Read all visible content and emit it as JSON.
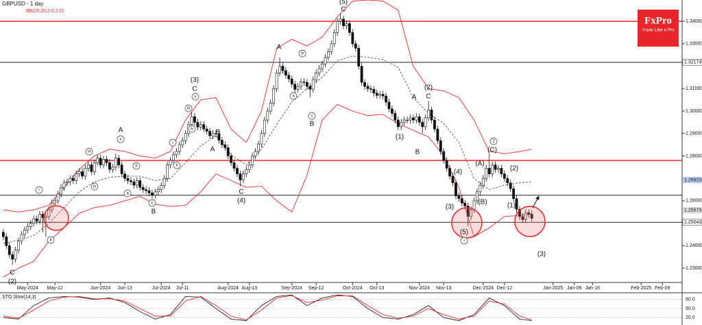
{
  "brand": {
    "name": "FxPro",
    "tagline": "Trade Like a Pro"
  },
  "chart_data": [
    {
      "type": "candlestick",
      "title": "GBPUSD - 1 day",
      "subtitle": "BB(20,20,2.0,2.0)",
      "xlim": [
        -1.1,
        223.5
      ],
      "ylim": [
        1.2236,
        1.3495
      ],
      "yticks": [
        {
          "value": 1.23,
          "label": "1.23000"
        },
        {
          "value": 1.24,
          "label": "1.24000"
        },
        {
          "value": 1.26,
          "label": "1.26000"
        },
        {
          "value": 1.28,
          "label": "1.28000"
        },
        {
          "value": 1.29,
          "label": "1.29000"
        },
        {
          "value": 1.3,
          "label": "1.30000"
        },
        {
          "value": 1.31,
          "label": "1.31000"
        },
        {
          "value": 1.33,
          "label": "1.33000"
        },
        {
          "value": 1.34,
          "label": "1.34000"
        }
      ],
      "xticks": [
        {
          "value": 8,
          "label": "May-2024"
        },
        {
          "value": 17,
          "label": "May-12"
        },
        {
          "value": 32,
          "label": "Jun-2024"
        },
        {
          "value": 40,
          "label": "Jun-13"
        },
        {
          "value": 52,
          "label": "Jul-2024"
        },
        {
          "value": 59,
          "label": "Jul-11"
        },
        {
          "value": 74,
          "label": "Aug-2024"
        },
        {
          "value": 81,
          "label": "Aug-13"
        },
        {
          "value": 95,
          "label": "Sep-2024"
        },
        {
          "value": 103,
          "label": "Sep-12"
        },
        {
          "value": 115,
          "label": "Oct-2024"
        },
        {
          "value": 123,
          "label": "Oct-13"
        },
        {
          "value": 137,
          "label": "Nov-2024"
        },
        {
          "value": 145,
          "label": "Nov-13"
        },
        {
          "value": 158,
          "label": "Dec-2024"
        },
        {
          "value": 165,
          "label": "Dec-12"
        },
        {
          "value": 181,
          "label": "Jan-2025"
        },
        {
          "value": 188,
          "label": "Jan-09"
        },
        {
          "value": 194,
          "label": "Jan-16"
        },
        {
          "value": 210,
          "label": "Feb-2025"
        },
        {
          "value": 217,
          "label": "Feb-09"
        }
      ],
      "up_color": "#ffffff",
      "down_color": "#111111",
      "open": [
        1.246,
        1.244,
        1.24,
        1.236,
        1.234,
        1.238,
        1.242,
        1.245,
        1.247,
        1.2485,
        1.25,
        1.252,
        1.251,
        1.254,
        1.2525,
        1.253,
        1.256,
        1.259,
        1.26,
        1.263,
        1.266,
        1.268,
        1.2685,
        1.27,
        1.269,
        1.272,
        1.273,
        1.271,
        1.2745,
        1.276,
        1.273,
        1.277,
        1.279,
        1.276,
        1.2785,
        1.277,
        1.274,
        1.275,
        1.279,
        1.276,
        1.272,
        1.27,
        1.269,
        1.2685,
        1.267,
        1.269,
        1.266,
        1.265,
        1.2645,
        1.2635,
        1.2625,
        1.264,
        1.265,
        1.2668,
        1.27,
        1.276,
        1.278,
        1.2805,
        1.282,
        1.285,
        1.2868,
        1.29,
        1.294,
        1.2975,
        1.295,
        1.2929,
        1.294,
        1.292,
        1.291,
        1.289,
        1.29,
        1.2898,
        1.287,
        1.285,
        1.2837,
        1.28,
        1.277,
        1.2745,
        1.272,
        1.2693,
        1.272,
        1.274,
        1.276,
        1.28,
        1.282,
        1.2853,
        1.29,
        1.296,
        1.3,
        1.3036,
        1.31,
        1.317,
        1.32,
        1.318,
        1.316,
        1.3143,
        1.312,
        1.3097,
        1.311,
        1.313,
        1.3128,
        1.311,
        1.3097,
        1.314,
        1.317,
        1.3189,
        1.321,
        1.324,
        1.3265,
        1.33,
        1.335,
        1.34,
        1.341,
        1.338,
        1.339,
        1.335,
        1.33,
        1.328,
        1.32,
        1.3128,
        1.311,
        1.31,
        1.3097,
        1.308,
        1.307,
        1.3075,
        1.3067,
        1.304,
        1.301,
        1.299,
        1.296,
        1.293,
        1.295,
        1.296,
        1.296,
        1.297,
        1.296,
        1.2975,
        1.295,
        1.293,
        1.297,
        1.3005,
        1.296,
        1.292,
        1.2868,
        1.282,
        1.278,
        1.2745,
        1.271,
        1.268,
        1.2622,
        1.261,
        1.259,
        1.2577,
        1.253,
        1.256,
        1.26,
        1.264,
        1.2669,
        1.27,
        1.2745,
        1.272,
        1.276,
        1.274,
        1.2745,
        1.272,
        1.27,
        1.268,
        1.2654,
        1.261,
        1.2562,
        1.253,
        1.2516,
        1.2547,
        1.254
      ],
      "high": [
        1.2475,
        1.2455,
        1.2415,
        1.2375,
        1.2395,
        1.2435,
        1.2465,
        1.2485,
        1.25,
        1.2515,
        1.2535,
        1.2535,
        1.2555,
        1.2555,
        1.2545,
        1.2575,
        1.2605,
        1.2615,
        1.2645,
        1.2675,
        1.2695,
        1.27,
        1.2715,
        1.2715,
        1.2735,
        1.2745,
        1.2745,
        1.276,
        1.2775,
        1.2775,
        1.2785,
        1.2805,
        1.2805,
        1.28,
        1.28,
        1.2785,
        1.2765,
        1.281,
        1.2805,
        1.2775,
        1.2735,
        1.2715,
        1.2705,
        1.27,
        1.2705,
        1.2705,
        1.2675,
        1.2665,
        1.266,
        1.265,
        1.2655,
        1.2665,
        1.2683,
        1.2715,
        1.2775,
        1.2795,
        1.282,
        1.2835,
        1.2865,
        1.2883,
        1.2915,
        1.2955,
        1.2995,
        1.299,
        1.2965,
        1.2955,
        1.2955,
        1.2935,
        1.2925,
        1.2915,
        1.2915,
        1.2913,
        1.2885,
        1.2865,
        1.2852,
        1.2815,
        1.2785,
        1.276,
        1.2735,
        1.2735,
        1.2755,
        1.2775,
        1.2815,
        1.2835,
        1.2868,
        1.2915,
        1.2975,
        1.3015,
        1.3051,
        1.3115,
        1.3185,
        1.324,
        1.3215,
        1.3195,
        1.3175,
        1.3158,
        1.3135,
        1.3125,
        1.3145,
        1.3145,
        1.3143,
        1.3125,
        1.3155,
        1.3185,
        1.3204,
        1.3225,
        1.3255,
        1.328,
        1.3315,
        1.3365,
        1.3415,
        1.3435,
        1.3425,
        1.3405,
        1.3405,
        1.3365,
        1.3315,
        1.3295,
        1.3215,
        1.3143,
        1.3125,
        1.3115,
        1.3112,
        1.3095,
        1.309,
        1.309,
        1.3082,
        1.3055,
        1.3025,
        1.3005,
        1.2975,
        1.2965,
        1.2975,
        1.2975,
        1.2985,
        1.2985,
        1.299,
        1.299,
        1.2965,
        1.2985,
        1.3045,
        1.302,
        1.2975,
        1.2935,
        1.2883,
        1.2835,
        1.2795,
        1.276,
        1.2725,
        1.2695,
        1.2637,
        1.2625,
        1.2605,
        1.2592,
        1.2575,
        1.2615,
        1.2655,
        1.2684,
        1.2715,
        1.276,
        1.281,
        1.2775,
        1.2775,
        1.276,
        1.276,
        1.2735,
        1.2715,
        1.2695,
        1.2669,
        1.2625,
        1.2577,
        1.2545,
        1.2562,
        1.2562,
        1.2557
      ],
      "low": [
        1.2425,
        1.2385,
        1.2345,
        1.2315,
        1.2325,
        1.2365,
        1.2405,
        1.2435,
        1.2455,
        1.247,
        1.2485,
        1.2495,
        1.2495,
        1.246,
        1.244,
        1.2515,
        1.2545,
        1.2575,
        1.2585,
        1.2615,
        1.2645,
        1.2665,
        1.267,
        1.2675,
        1.2675,
        1.2705,
        1.2695,
        1.2695,
        1.273,
        1.2715,
        1.2715,
        1.2755,
        1.2745,
        1.2745,
        1.2755,
        1.2725,
        1.2725,
        1.2735,
        1.2745,
        1.2705,
        1.2685,
        1.2675,
        1.267,
        1.2655,
        1.2655,
        1.2645,
        1.2635,
        1.263,
        1.262,
        1.261,
        1.261,
        1.2625,
        1.2635,
        1.2653,
        1.2685,
        1.2745,
        1.2765,
        1.279,
        1.2805,
        1.2835,
        1.2853,
        1.2885,
        1.2925,
        1.2935,
        1.2914,
        1.2914,
        1.2905,
        1.2895,
        1.2875,
        1.2875,
        1.2883,
        1.2855,
        1.2835,
        1.2822,
        1.2785,
        1.2755,
        1.273,
        1.2705,
        1.2665,
        1.2678,
        1.2705,
        1.2725,
        1.2745,
        1.2785,
        1.2805,
        1.2838,
        1.2885,
        1.2945,
        1.2985,
        1.3021,
        1.3085,
        1.3155,
        1.3165,
        1.3145,
        1.3128,
        1.3105,
        1.3082,
        1.3082,
        1.3095,
        1.3113,
        1.3095,
        1.306,
        1.3082,
        1.3125,
        1.3155,
        1.3174,
        1.3195,
        1.3225,
        1.325,
        1.3285,
        1.3335,
        1.3385,
        1.3365,
        1.3365,
        1.3335,
        1.3285,
        1.3265,
        1.3185,
        1.3113,
        1.3095,
        1.3085,
        1.3082,
        1.3065,
        1.3055,
        1.3055,
        1.3052,
        1.3025,
        1.2995,
        1.2975,
        1.2945,
        1.2915,
        1.2915,
        1.2935,
        1.2945,
        1.2945,
        1.2945,
        1.2945,
        1.2935,
        1.29,
        1.2915,
        1.2955,
        1.2945,
        1.2905,
        1.2853,
        1.2805,
        1.2765,
        1.273,
        1.2695,
        1.2665,
        1.2607,
        1.2595,
        1.2575,
        1.2562,
        1.2487,
        1.2515,
        1.2545,
        1.2585,
        1.2625,
        1.2654,
        1.2685,
        1.2705,
        1.2705,
        1.2725,
        1.2725,
        1.2705,
        1.2685,
        1.2665,
        1.2639,
        1.2595,
        1.2547,
        1.2515,
        1.2501,
        1.2501,
        1.2525,
        1.2507
      ],
      "close": [
        1.244,
        1.24,
        1.236,
        1.234,
        1.238,
        1.242,
        1.245,
        1.247,
        1.2485,
        1.25,
        1.252,
        1.251,
        1.254,
        1.2525,
        1.253,
        1.256,
        1.259,
        1.26,
        1.263,
        1.266,
        1.268,
        1.2685,
        1.27,
        1.269,
        1.272,
        1.273,
        1.271,
        1.2745,
        1.276,
        1.273,
        1.277,
        1.279,
        1.276,
        1.2785,
        1.277,
        1.274,
        1.275,
        1.279,
        1.276,
        1.272,
        1.27,
        1.269,
        1.2685,
        1.267,
        1.269,
        1.266,
        1.265,
        1.2645,
        1.2635,
        1.2625,
        1.264,
        1.265,
        1.2668,
        1.27,
        1.276,
        1.278,
        1.2805,
        1.282,
        1.285,
        1.2868,
        1.29,
        1.294,
        1.2975,
        1.295,
        1.2929,
        1.294,
        1.292,
        1.291,
        1.289,
        1.29,
        1.2898,
        1.287,
        1.285,
        1.2837,
        1.28,
        1.277,
        1.2745,
        1.272,
        1.2693,
        1.272,
        1.274,
        1.276,
        1.28,
        1.282,
        1.2853,
        1.29,
        1.296,
        1.3,
        1.3036,
        1.31,
        1.317,
        1.32,
        1.318,
        1.316,
        1.3143,
        1.312,
        1.3097,
        1.311,
        1.313,
        1.3128,
        1.311,
        1.3097,
        1.314,
        1.317,
        1.3189,
        1.321,
        1.324,
        1.3265,
        1.33,
        1.335,
        1.34,
        1.341,
        1.338,
        1.339,
        1.335,
        1.33,
        1.328,
        1.32,
        1.3128,
        1.311,
        1.31,
        1.3097,
        1.308,
        1.307,
        1.3075,
        1.3067,
        1.304,
        1.301,
        1.299,
        1.296,
        1.293,
        1.295,
        1.296,
        1.296,
        1.297,
        1.296,
        1.2975,
        1.295,
        1.293,
        1.297,
        1.3005,
        1.296,
        1.292,
        1.2868,
        1.282,
        1.278,
        1.2745,
        1.271,
        1.268,
        1.2622,
        1.261,
        1.259,
        1.2577,
        1.253,
        1.256,
        1.26,
        1.264,
        1.2669,
        1.27,
        1.2745,
        1.272,
        1.276,
        1.274,
        1.2745,
        1.272,
        1.27,
        1.268,
        1.2654,
        1.261,
        1.2562,
        1.253,
        1.2516,
        1.2547,
        1.254,
        1.2522
      ],
      "bollinger": {
        "color": "#e8262a",
        "middle_color": "#555555",
        "x": [
          0,
          5,
          10,
          15,
          20,
          25,
          30,
          35,
          40,
          45,
          50,
          55,
          60,
          65,
          70,
          75,
          80,
          85,
          90,
          95,
          100,
          105,
          110,
          115,
          120,
          125,
          130,
          135,
          140,
          145,
          150,
          155,
          160,
          165,
          170,
          174
        ],
        "upper": [
          1.256,
          1.255,
          1.256,
          1.258,
          1.266,
          1.274,
          1.28,
          1.283,
          1.282,
          1.28,
          1.279,
          1.282,
          1.296,
          1.305,
          1.306,
          1.292,
          1.286,
          1.3,
          1.328,
          1.332,
          1.329,
          1.333,
          1.342,
          1.349,
          1.3495,
          1.349,
          1.345,
          1.32,
          1.31,
          1.309,
          1.306,
          1.296,
          1.282,
          1.281,
          1.282,
          1.283
        ],
        "middle": [
          1.241,
          1.2425,
          1.2445,
          1.25,
          1.257,
          1.264,
          1.2685,
          1.2705,
          1.271,
          1.271,
          1.269,
          1.27,
          1.277,
          1.2845,
          1.289,
          1.2805,
          1.276,
          1.283,
          1.294,
          1.304,
          1.31,
          1.315,
          1.3225,
          1.3245,
          1.324,
          1.323,
          1.3195,
          1.306,
          1.299,
          1.2945,
          1.286,
          1.27,
          1.265,
          1.267,
          1.268,
          1.2685
        ],
        "lower": [
          1.226,
          1.23,
          1.233,
          1.242,
          1.248,
          1.2545,
          1.257,
          1.258,
          1.26,
          1.262,
          1.2585,
          1.2575,
          1.258,
          1.264,
          1.272,
          1.269,
          1.266,
          1.2665,
          1.26,
          1.255,
          1.2715,
          1.296,
          1.303,
          1.3,
          1.298,
          1.2985,
          1.2945,
          1.2914,
          1.2885,
          1.28,
          1.266,
          1.244,
          1.248,
          1.253,
          1.2535,
          1.2541
        ]
      },
      "levels": [
        {
          "value": 1.34,
          "color": "#e8262a"
        },
        {
          "value": 1.278,
          "color": "#e8262a"
        },
        {
          "value": 1.32174,
          "label": "1.32174",
          "color": "#222222"
        },
        {
          "value": 1.2625,
          "color": "#222222"
        },
        {
          "value": 1.25043,
          "label": "1.25043",
          "color": "#222222"
        }
      ],
      "price_markers": [
        {
          "value": 1.26923,
          "label": "1.26923",
          "color": "#b9cdf2"
        },
        {
          "value": 1.25573,
          "label": "1.25573",
          "color": "#dddddd"
        }
      ],
      "annotations": [
        "(2)",
        "C",
        "i",
        "ii",
        "iii",
        "iv",
        "v",
        "A",
        "a",
        "b",
        "c",
        "B",
        "i",
        "ii",
        "iii",
        "iv",
        "v",
        "(3)",
        "C",
        "B",
        "A",
        "C",
        "(4)",
        "A",
        "b",
        "a",
        "c",
        "B",
        "(5)",
        "C",
        "A",
        "(2)",
        "C",
        "(1)",
        "B",
        "(4)",
        "(3)",
        "(5)",
        "i",
        "(B)",
        "(A)",
        "2",
        "(C)",
        "(2)",
        "(1)",
        "(3)"
      ]
    },
    {
      "type": "line",
      "title": "STO Slow(14,3)",
      "xlim": [
        -1.1,
        223.5
      ],
      "ylim": [
        0,
        100
      ],
      "yticks": [
        {
          "value": 20,
          "label": "20.0"
        },
        {
          "value": 50,
          "label": "50.0"
        },
        {
          "value": 80,
          "label": "80.0"
        }
      ],
      "x": [
        0,
        5,
        10,
        15,
        20,
        25,
        30,
        35,
        40,
        45,
        50,
        55,
        60,
        65,
        70,
        75,
        80,
        85,
        90,
        95,
        100,
        105,
        110,
        115,
        120,
        125,
        130,
        135,
        140,
        145,
        150,
        155,
        160,
        165,
        170,
        174
      ],
      "series": [
        {
          "color": "#222222",
          "values": [
            20,
            15,
            60,
            85,
            90,
            88,
            80,
            85,
            70,
            40,
            15,
            30,
            90,
            88,
            50,
            15,
            10,
            60,
            90,
            95,
            60,
            85,
            95,
            90,
            50,
            20,
            15,
            30,
            60,
            20,
            10,
            30,
            85,
            60,
            15,
            10
          ]
        },
        {
          "color": "#e8262a",
          "values": [
            25,
            18,
            45,
            75,
            88,
            90,
            82,
            83,
            75,
            50,
            25,
            25,
            75,
            90,
            60,
            25,
            12,
            45,
            85,
            93,
            70,
            78,
            92,
            92,
            60,
            30,
            18,
            25,
            50,
            30,
            15,
            25,
            75,
            65,
            25,
            12
          ]
        }
      ]
    }
  ]
}
